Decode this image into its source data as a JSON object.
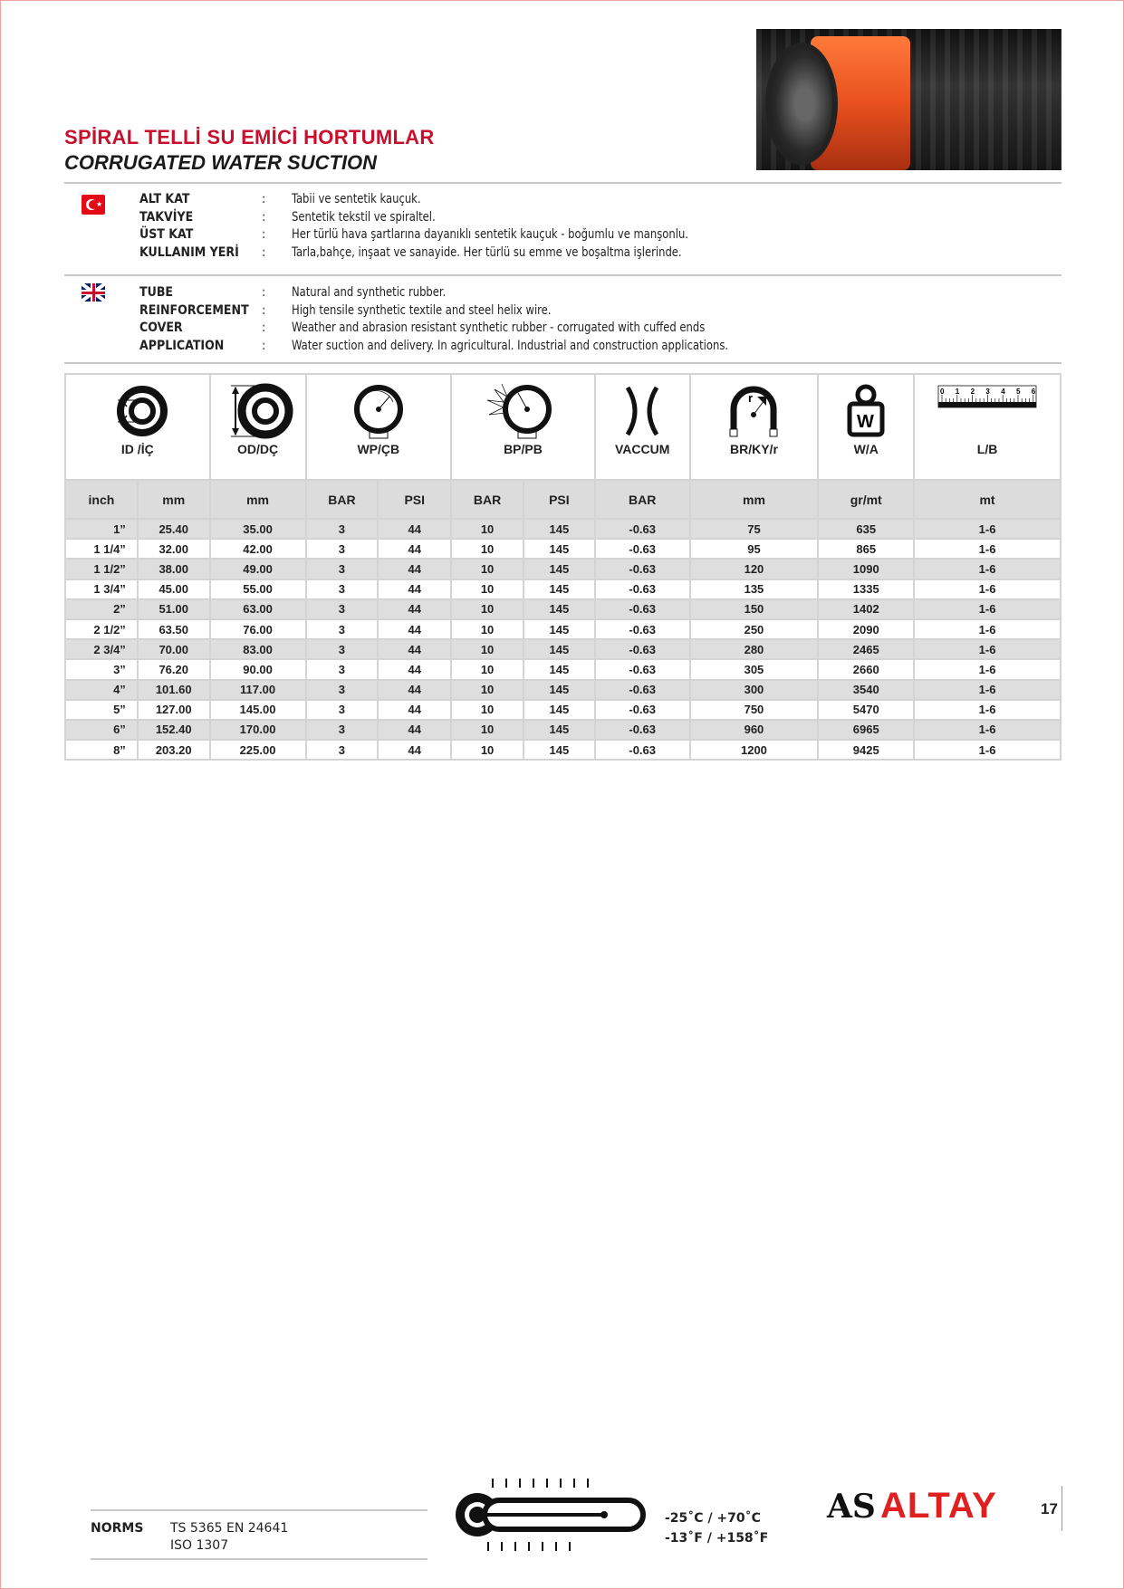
{
  "title_tr": "SPİRAL TELLİ SU EMİCİ HORTUMLAR",
  "title_en": "CORRUGATED WATER SUCTION",
  "colors": {
    "accent": "#c8102e",
    "hose_orange": "#e8501e"
  },
  "specs_tr": [
    {
      "label": "ALT KAT",
      "value": "Tabii ve sentetik kauçuk."
    },
    {
      "label": "TAKVİYE",
      "value": "Sentetik tekstil ve spiraltel."
    },
    {
      "label": "ÜST KAT",
      "value": "Her türlü hava şartlarına dayanıklı sentetik kauçuk - boğumlu ve manşonlu."
    },
    {
      "label": "KULLANIM YERİ",
      "value": "Tarla,bahçe, inşaat ve sanayide. Her türlü su emme ve boşaltma işlerinde."
    }
  ],
  "specs_en": [
    {
      "label": "TUBE",
      "value": "Natural and synthetic rubber."
    },
    {
      "label": "REINFORCEMENT",
      "value": "High tensile synthetic textile and steel helix wire."
    },
    {
      "label": "COVER",
      "value": "Weather and abrasion resistant synthetic rubber - corrugated with cuffed ends"
    },
    {
      "label": "APPLICATION",
      "value": "Water suction and delivery. In agricultural. Industrial and construction applications."
    }
  ],
  "colon": ":",
  "table": {
    "groups": [
      "ID /İÇ",
      "OD/DÇ",
      "WP/ÇB",
      "BP/PB",
      "VACCUM",
      "BR/KY/r",
      "W/A",
      "L/B"
    ],
    "ruler_numbers": [
      "0",
      "1",
      "2",
      "3",
      "4",
      "5",
      "6"
    ],
    "bend_r": "r",
    "weight_w": "W",
    "units": [
      "inch",
      "mm",
      "mm",
      "BAR",
      "PSI",
      "BAR",
      "PSI",
      "BAR",
      "mm",
      "gr/mt",
      "mt"
    ],
    "rows": [
      [
        "1”",
        "25.40",
        "35.00",
        "3",
        "44",
        "10",
        "145",
        "-0.63",
        "75",
        "635",
        "1-6"
      ],
      [
        "1 1/4”",
        "32.00",
        "42.00",
        "3",
        "44",
        "10",
        "145",
        "-0.63",
        "95",
        "865",
        "1-6"
      ],
      [
        "1 1/2”",
        "38.00",
        "49.00",
        "3",
        "44",
        "10",
        "145",
        "-0.63",
        "120",
        "1090",
        "1-6"
      ],
      [
        "1 3/4”",
        "45.00",
        "55.00",
        "3",
        "44",
        "10",
        "145",
        "-0.63",
        "135",
        "1335",
        "1-6"
      ],
      [
        "2”",
        "51.00",
        "63.00",
        "3",
        "44",
        "10",
        "145",
        "-0.63",
        "150",
        "1402",
        "1-6"
      ],
      [
        "2 1/2”",
        "63.50",
        "76.00",
        "3",
        "44",
        "10",
        "145",
        "-0.63",
        "250",
        "2090",
        "1-6"
      ],
      [
        "2 3/4”",
        "70.00",
        "83.00",
        "3",
        "44",
        "10",
        "145",
        "-0.63",
        "280",
        "2465",
        "1-6"
      ],
      [
        "3”",
        "76.20",
        "90.00",
        "3",
        "44",
        "10",
        "145",
        "-0.63",
        "305",
        "2660",
        "1-6"
      ],
      [
        "4”",
        "101.60",
        "117.00",
        "3",
        "44",
        "10",
        "145",
        "-0.63",
        "300",
        "3540",
        "1-6"
      ],
      [
        "5”",
        "127.00",
        "145.00",
        "3",
        "44",
        "10",
        "145",
        "-0.63",
        "750",
        "5470",
        "1-6"
      ],
      [
        "6”",
        "152.40",
        "170.00",
        "3",
        "44",
        "10",
        "145",
        "-0.63",
        "960",
        "6965",
        "1-6"
      ],
      [
        "8”",
        "203.20",
        "225.00",
        "3",
        "44",
        "10",
        "145",
        "-0.63",
        "1200",
        "9425",
        "1-6"
      ]
    ]
  },
  "footer": {
    "norms_label": "NORMS",
    "norms": [
      "TS 5365 EN 24641",
      "ISO 1307"
    ],
    "temp_c": "-25˚C / +70˚C",
    "temp_f": "-13˚F / +158˚F",
    "logo_as": "AS",
    "logo_brand": "ALTAY",
    "page_number": "17"
  }
}
